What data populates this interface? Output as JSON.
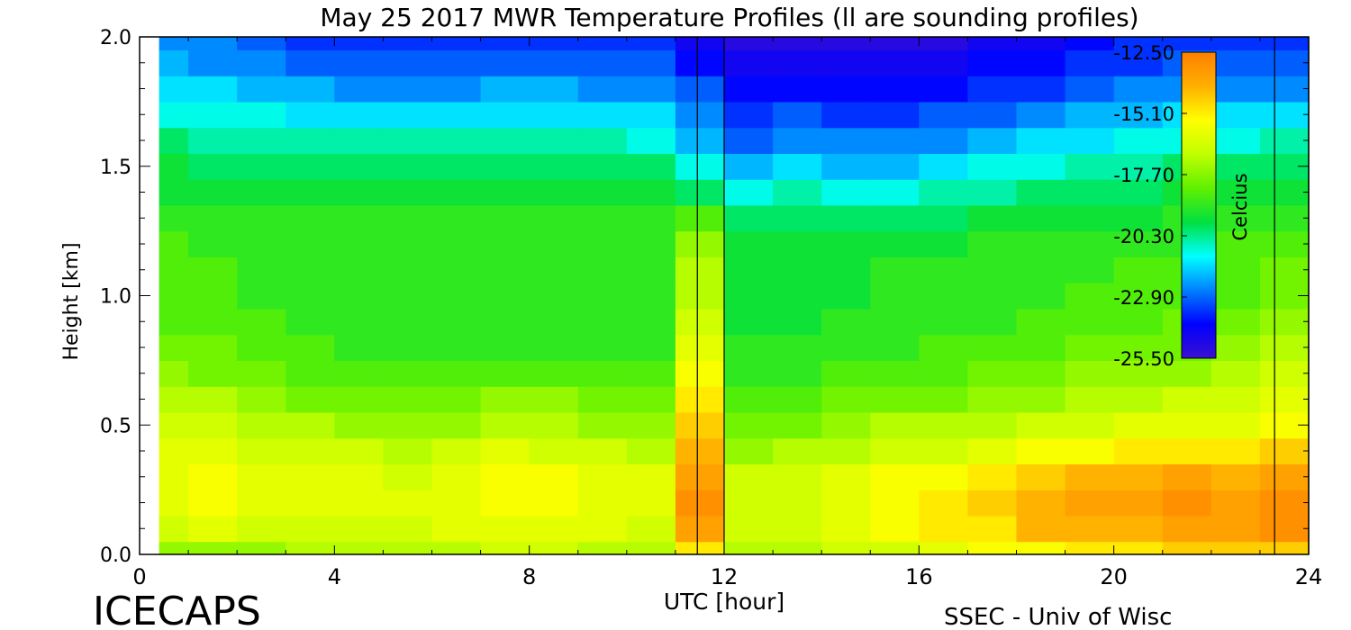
{
  "chart_data": {
    "type": "heatmap",
    "title": "May 25 2017 MWR Temperature Profiles (ll are sounding profiles)",
    "xlabel": "UTC [hour]",
    "ylabel": "Height [km]",
    "xlim": [
      0,
      24
    ],
    "ylim": [
      0,
      2.0
    ],
    "x_ticks": [
      "0",
      "4",
      "8",
      "12",
      "16",
      "20",
      "24"
    ],
    "y_ticks": [
      "0.0",
      "0.5",
      "1.0",
      "1.5",
      "2.0"
    ],
    "colorbar": {
      "label": "Celcius",
      "ticks": [
        "-12.50",
        "-15.10",
        "-17.70",
        "-20.30",
        "-22.90",
        "-25.50"
      ],
      "range": [
        -25.5,
        -12.5
      ],
      "colors": [
        "#3a10d0",
        "#0000ff",
        "#0080ff",
        "#00ffff",
        "#00e040",
        "#60f000",
        "#c0ff00",
        "#ffff00",
        "#ffb000",
        "#ff8000"
      ]
    },
    "data_start_hour": 0.4,
    "sounding_profiles": [
      {
        "start": 11.45,
        "end": 12.0
      },
      {
        "start": 23.3,
        "end": 24.0
      }
    ],
    "heights_km": [
      0.0,
      0.1,
      0.2,
      0.3,
      0.4,
      0.5,
      0.6,
      0.7,
      0.8,
      0.9,
      1.0,
      1.1,
      1.2,
      1.3,
      1.4,
      1.5,
      1.6,
      1.7,
      1.8,
      1.9,
      2.0
    ],
    "times_hour": [
      0.5,
      1.5,
      2.5,
      3.5,
      4.5,
      5.5,
      6.5,
      7.5,
      8.5,
      9.5,
      10.5,
      11.5,
      12.5,
      13.5,
      14.5,
      15.5,
      16.5,
      17.5,
      18.5,
      19.5,
      20.5,
      21.5,
      22.5,
      23.5
    ],
    "temperature_C": [
      [
        -17.6,
        -17.4,
        -17.3,
        -17.1,
        -17.0,
        -16.9,
        -16.8,
        -16.7,
        -16.7,
        -16.8,
        -17.0,
        -15.0,
        -17.2,
        -17.0,
        -16.6,
        -16.3,
        -16.0,
        -15.6,
        -15.3,
        -15.0,
        -14.8,
        -14.6,
        -14.6,
        -14.3
      ],
      [
        -16.4,
        -16.2,
        -16.3,
        -16.4,
        -16.3,
        -16.3,
        -16.1,
        -15.8,
        -15.9,
        -16.2,
        -16.3,
        -13.5,
        -16.6,
        -16.4,
        -16.0,
        -15.6,
        -15.2,
        -14.8,
        -14.2,
        -14.0,
        -13.8,
        -13.6,
        -13.6,
        -13.2
      ],
      [
        -15.9,
        -15.6,
        -15.8,
        -16.0,
        -16.0,
        -16.1,
        -15.8,
        -15.4,
        -15.5,
        -15.9,
        -15.9,
        -13.2,
        -16.4,
        -16.3,
        -15.9,
        -15.5,
        -15.1,
        -14.6,
        -13.9,
        -13.7,
        -13.4,
        -13.0,
        -13.3,
        -13.0
      ],
      [
        -15.8,
        -15.6,
        -15.9,
        -16.1,
        -16.2,
        -16.3,
        -16.0,
        -15.5,
        -15.6,
        -16.0,
        -16.2,
        -13.5,
        -16.7,
        -16.6,
        -16.1,
        -15.7,
        -15.4,
        -15.0,
        -14.5,
        -14.2,
        -13.9,
        -13.7,
        -13.9,
        -13.6
      ],
      [
        -16.1,
        -16.0,
        -16.3,
        -16.6,
        -16.7,
        -16.8,
        -16.6,
        -16.2,
        -16.3,
        -16.7,
        -16.9,
        -14.0,
        -17.3,
        -17.2,
        -16.8,
        -16.5,
        -16.3,
        -16.0,
        -15.7,
        -15.4,
        -15.1,
        -14.9,
        -15.0,
        -14.6
      ],
      [
        -16.6,
        -16.6,
        -16.9,
        -17.2,
        -17.3,
        -17.4,
        -17.3,
        -17.0,
        -17.0,
        -17.3,
        -17.5,
        -14.5,
        -17.9,
        -17.8,
        -17.5,
        -17.2,
        -17.1,
        -16.9,
        -16.6,
        -16.3,
        -16.0,
        -15.8,
        -15.9,
        -15.4
      ],
      [
        -17.1,
        -17.2,
        -17.5,
        -17.8,
        -17.9,
        -18.0,
        -17.9,
        -17.7,
        -17.7,
        -18.0,
        -18.1,
        -15.0,
        -18.4,
        -18.3,
        -18.1,
        -17.9,
        -17.8,
        -17.6,
        -17.3,
        -17.0,
        -16.8,
        -16.6,
        -16.6,
        -16.1
      ],
      [
        -17.6,
        -17.8,
        -18.0,
        -18.3,
        -18.4,
        -18.5,
        -18.4,
        -18.3,
        -18.3,
        -18.5,
        -18.6,
        -15.6,
        -18.8,
        -18.8,
        -18.6,
        -18.4,
        -18.3,
        -18.1,
        -17.9,
        -17.6,
        -17.4,
        -17.3,
        -17.2,
        -16.7
      ],
      [
        -18.0,
        -18.2,
        -18.4,
        -18.7,
        -18.8,
        -18.9,
        -18.9,
        -18.8,
        -18.8,
        -18.9,
        -19.0,
        -16.1,
        -19.1,
        -19.1,
        -19.0,
        -18.8,
        -18.7,
        -18.5,
        -18.3,
        -18.1,
        -17.9,
        -17.8,
        -17.7,
        -17.2
      ],
      [
        -18.3,
        -18.5,
        -18.7,
        -18.9,
        -19.0,
        -19.1,
        -19.1,
        -19.0,
        -19.0,
        -19.1,
        -19.2,
        -16.5,
        -19.3,
        -19.3,
        -19.2,
        -19.1,
        -19.0,
        -18.8,
        -18.6,
        -18.5,
        -18.3,
        -18.2,
        -18.1,
        -17.6
      ],
      [
        -18.5,
        -18.7,
        -18.8,
        -19.0,
        -19.1,
        -19.1,
        -19.1,
        -19.0,
        -19.0,
        -19.1,
        -19.2,
        -16.8,
        -19.4,
        -19.4,
        -19.3,
        -19.2,
        -19.1,
        -19.0,
        -18.9,
        -18.7,
        -18.6,
        -18.5,
        -18.4,
        -17.9
      ],
      [
        -18.6,
        -18.7,
        -18.8,
        -18.9,
        -19.0,
        -19.0,
        -19.0,
        -18.9,
        -18.8,
        -18.9,
        -19.0,
        -17.1,
        -19.3,
        -19.3,
        -19.3,
        -19.2,
        -19.1,
        -19.0,
        -18.9,
        -18.8,
        -18.7,
        -18.6,
        -18.5,
        -18.2
      ],
      [
        -18.7,
        -18.8,
        -18.9,
        -19.0,
        -19.0,
        -19.0,
        -19.0,
        -18.9,
        -18.8,
        -18.9,
        -19.0,
        -17.6,
        -19.3,
        -19.4,
        -19.4,
        -19.4,
        -19.3,
        -19.2,
        -19.1,
        -19.0,
        -18.9,
        -18.8,
        -18.7,
        -18.5
      ],
      [
        -19.0,
        -19.1,
        -19.2,
        -19.2,
        -19.2,
        -19.2,
        -19.1,
        -19.1,
        -19.0,
        -19.1,
        -19.2,
        -18.6,
        -19.8,
        -19.8,
        -19.9,
        -19.9,
        -19.8,
        -19.7,
        -19.6,
        -19.4,
        -19.3,
        -19.2,
        -19.1,
        -18.9
      ],
      [
        -19.3,
        -19.4,
        -19.5,
        -19.5,
        -19.5,
        -19.5,
        -19.4,
        -19.4,
        -19.4,
        -19.5,
        -19.6,
        -19.8,
        -20.9,
        -20.7,
        -20.9,
        -21.0,
        -20.6,
        -20.3,
        -20.1,
        -19.9,
        -19.8,
        -19.6,
        -19.5,
        -19.4
      ],
      [
        -19.7,
        -19.8,
        -19.9,
        -19.9,
        -19.9,
        -20.0,
        -20.0,
        -19.9,
        -19.9,
        -20.0,
        -20.1,
        -21.0,
        -22.0,
        -21.5,
        -21.8,
        -21.9,
        -21.5,
        -21.1,
        -20.9,
        -20.6,
        -20.4,
        -20.2,
        -20.1,
        -20.0
      ],
      [
        -20.2,
        -20.3,
        -20.4,
        -20.5,
        -20.6,
        -20.7,
        -20.6,
        -20.6,
        -20.6,
        -20.7,
        -20.8,
        -21.8,
        -22.8,
        -22.3,
        -22.6,
        -22.7,
        -22.3,
        -21.9,
        -21.6,
        -21.3,
        -21.1,
        -20.9,
        -20.8,
        -20.7
      ],
      [
        -20.8,
        -21.0,
        -21.2,
        -21.4,
        -21.5,
        -21.6,
        -21.5,
        -21.4,
        -21.4,
        -21.5,
        -21.6,
        -22.5,
        -23.5,
        -23.2,
        -23.4,
        -23.5,
        -23.1,
        -22.8,
        -22.5,
        -22.2,
        -21.9,
        -21.7,
        -21.6,
        -21.6
      ],
      [
        -21.4,
        -21.7,
        -22.0,
        -22.2,
        -22.4,
        -22.5,
        -22.3,
        -22.2,
        -22.2,
        -22.3,
        -22.5,
        -23.2,
        -24.1,
        -24.0,
        -24.1,
        -24.2,
        -23.9,
        -23.6,
        -23.3,
        -23.0,
        -22.7,
        -22.5,
        -22.4,
        -22.4
      ],
      [
        -21.9,
        -22.3,
        -22.6,
        -22.9,
        -23.1,
        -23.2,
        -23.0,
        -22.9,
        -22.9,
        -23.0,
        -23.2,
        -23.8,
        -24.6,
        -24.6,
        -24.6,
        -24.7,
        -24.5,
        -24.2,
        -23.9,
        -23.6,
        -23.3,
        -23.1,
        -23.0,
        -23.1
      ],
      [
        -22.3,
        -22.7,
        -23.1,
        -23.4,
        -23.6,
        -23.7,
        -23.5,
        -23.4,
        -23.4,
        -23.5,
        -23.7,
        -24.3,
        -25.0,
        -25.0,
        -25.0,
        -25.1,
        -24.9,
        -24.6,
        -24.3,
        -24.0,
        -23.7,
        -23.5,
        -23.4,
        -23.6
      ]
    ]
  },
  "footer": {
    "left": "ICECAPS",
    "right": "SSEC - Univ of Wisc"
  }
}
